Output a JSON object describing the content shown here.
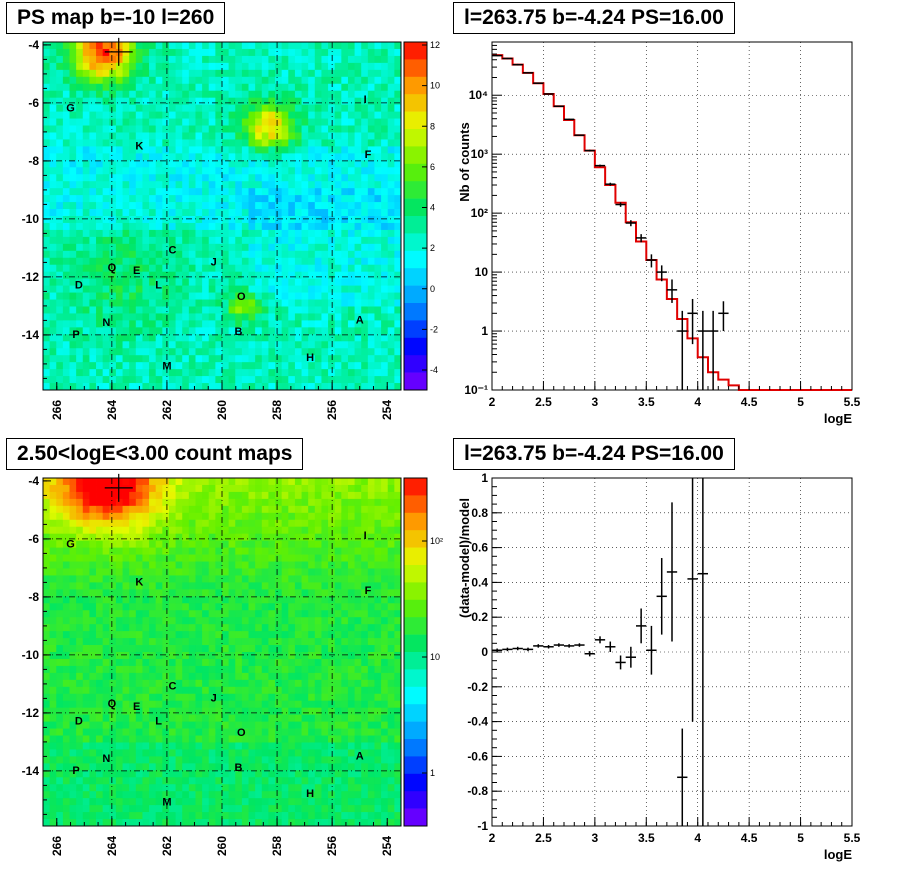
{
  "panels": [
    {
      "title": "PS map b=-10 l=260"
    },
    {
      "title": "l=263.75 b=-4.24 PS=16.00"
    },
    {
      "title": "2.50<logE<3.00 count maps"
    },
    {
      "title": "l=263.75 b=-4.24 PS=16.00"
    }
  ],
  "maps": {
    "x_ticks": [
      "266",
      "264",
      "262",
      "260",
      "258",
      "256",
      "254"
    ],
    "y_ticks": [
      "-4",
      "-6",
      "-8",
      "-10",
      "-12",
      "-14"
    ],
    "sources": [
      {
        "label": "G",
        "l": 265.5,
        "b": -6.3
      },
      {
        "label": "K",
        "l": 263.0,
        "b": -7.6
      },
      {
        "label": "I",
        "l": 254.8,
        "b": -6.0
      },
      {
        "label": "F",
        "l": 254.7,
        "b": -7.9
      },
      {
        "label": "C",
        "l": 261.8,
        "b": -11.2
      },
      {
        "label": "J",
        "l": 260.3,
        "b": -11.6
      },
      {
        "label": "Q",
        "l": 264.0,
        "b": -11.8
      },
      {
        "label": "E",
        "l": 263.1,
        "b": -11.9
      },
      {
        "label": "D",
        "l": 265.2,
        "b": -12.4
      },
      {
        "label": "L",
        "l": 262.3,
        "b": -12.4
      },
      {
        "label": "O",
        "l": 259.3,
        "b": -12.8
      },
      {
        "label": "N",
        "l": 264.2,
        "b": -13.7
      },
      {
        "label": "P",
        "l": 265.3,
        "b": -14.1
      },
      {
        "label": "B",
        "l": 259.4,
        "b": -14.0
      },
      {
        "label": "A",
        "l": 255.0,
        "b": -13.6
      },
      {
        "label": "H",
        "l": 256.8,
        "b": -14.9
      },
      {
        "label": "M",
        "l": 262.0,
        "b": -15.2
      }
    ],
    "ps_colorbar_ticks": [
      "12",
      "10",
      "8",
      "6",
      "4",
      "2",
      "0",
      "-2",
      "-4"
    ],
    "count_colorbar_ticks": [
      "10²",
      "10",
      "1"
    ]
  },
  "chart_data": [
    {
      "type": "heatmap",
      "title": "PS map b=-10 l=260",
      "xlim": [
        266.5,
        253.5
      ],
      "ylim": [
        -15.9,
        -3.9
      ],
      "zlim": [
        -5,
        12
      ]
    },
    {
      "type": "line",
      "title": "l=263.75 b=-4.24 PS=16.00",
      "xlabel": "logE",
      "ylabel": "Nb of counts",
      "xlim": [
        2,
        5.5
      ],
      "ylim": [
        0.1,
        80000
      ],
      "yscale": "log",
      "grid": true,
      "x_ticks": [
        "2",
        "2.5",
        "3",
        "3.5",
        "4",
        "4.5",
        "5",
        "5.5"
      ],
      "y_ticks": [
        "10⁴",
        "10³",
        "10²",
        "10",
        "1",
        "10⁻¹"
      ],
      "model_edges": [
        2.0,
        2.1,
        2.2,
        2.3,
        2.4,
        2.5,
        2.6,
        2.7,
        2.8,
        2.9,
        3.0,
        3.1,
        3.2,
        3.3,
        3.4,
        3.5,
        3.6,
        3.7,
        3.8,
        3.9,
        4.0,
        4.1,
        4.2,
        4.3,
        4.4,
        4.5,
        5.5
      ],
      "model_values": [
        48000,
        42000,
        33000,
        24000,
        16000,
        10500,
        6500,
        3800,
        2100,
        1150,
        600,
        300,
        150,
        70,
        33,
        16,
        7.5,
        3.5,
        1.6,
        0.75,
        0.36,
        0.2,
        0.15,
        0.12,
        0.1,
        0.1
      ],
      "data_points": [
        {
          "x": 2.05,
          "y": 47000,
          "lo": 46000,
          "hi": 48000
        },
        {
          "x": 2.15,
          "y": 42000,
          "lo": 41000,
          "hi": 43000
        },
        {
          "x": 2.25,
          "y": 33000,
          "lo": 32000,
          "hi": 34000
        },
        {
          "x": 2.35,
          "y": 24000,
          "lo": 23500,
          "hi": 24500
        },
        {
          "x": 2.45,
          "y": 16000,
          "lo": 15700,
          "hi": 16300
        },
        {
          "x": 2.55,
          "y": 10500,
          "lo": 10300,
          "hi": 10700
        },
        {
          "x": 2.65,
          "y": 6500,
          "lo": 6400,
          "hi": 6600
        },
        {
          "x": 2.75,
          "y": 3900,
          "lo": 3800,
          "hi": 4000
        },
        {
          "x": 2.85,
          "y": 2100,
          "lo": 2050,
          "hi": 2150
        },
        {
          "x": 2.95,
          "y": 1150,
          "lo": 1110,
          "hi": 1190
        },
        {
          "x": 3.05,
          "y": 640,
          "lo": 615,
          "hi": 665
        },
        {
          "x": 3.15,
          "y": 310,
          "lo": 292,
          "hi": 328
        },
        {
          "x": 3.25,
          "y": 140,
          "lo": 128,
          "hi": 152
        },
        {
          "x": 3.35,
          "y": 68,
          "lo": 60,
          "hi": 76
        },
        {
          "x": 3.45,
          "y": 38,
          "lo": 32,
          "hi": 44
        },
        {
          "x": 3.55,
          "y": 16,
          "lo": 12,
          "hi": 20
        },
        {
          "x": 3.65,
          "y": 10,
          "lo": 7,
          "hi": 13
        },
        {
          "x": 3.75,
          "y": 5,
          "lo": 3,
          "hi": 7.5
        },
        {
          "x": 3.85,
          "y": 1,
          "lo": 0.1,
          "hi": 2.2
        },
        {
          "x": 3.95,
          "y": 2,
          "lo": 0.6,
          "hi": 3.5
        },
        {
          "x": 4.05,
          "y": 1,
          "lo": 0.1,
          "hi": 2.2
        },
        {
          "x": 4.15,
          "y": 1,
          "lo": 0.1,
          "hi": 2.2
        },
        {
          "x": 4.25,
          "y": 2,
          "lo": 1,
          "hi": 3.2
        }
      ]
    },
    {
      "type": "heatmap",
      "title": "2.50<logE<3.00 count maps",
      "xlim": [
        266.5,
        253.5
      ],
      "ylim": [
        -15.9,
        -3.9
      ],
      "zscale": "log"
    },
    {
      "type": "scatter",
      "title": "l=263.75 b=-4.24 PS=16.00",
      "xlabel": "logE",
      "ylabel": "(data-model)/model",
      "xlim": [
        2,
        5.5
      ],
      "ylim": [
        -1,
        1
      ],
      "grid": true,
      "x_ticks": [
        "2",
        "2.5",
        "3",
        "3.5",
        "4",
        "4.5",
        "5",
        "5.5"
      ],
      "y_ticks": [
        "1",
        "0.8",
        "0.6",
        "0.4",
        "0.2",
        "0",
        "-0.2",
        "-0.4",
        "-0.6",
        "-0.8",
        "-1"
      ],
      "points": [
        {
          "x": 2.05,
          "y": 0.01,
          "err": 0.01
        },
        {
          "x": 2.15,
          "y": 0.015,
          "err": 0.01
        },
        {
          "x": 2.25,
          "y": 0.02,
          "err": 0.01
        },
        {
          "x": 2.35,
          "y": 0.015,
          "err": 0.01
        },
        {
          "x": 2.45,
          "y": 0.035,
          "err": 0.01
        },
        {
          "x": 2.55,
          "y": 0.03,
          "err": 0.01
        },
        {
          "x": 2.65,
          "y": 0.04,
          "err": 0.01
        },
        {
          "x": 2.75,
          "y": 0.035,
          "err": 0.01
        },
        {
          "x": 2.85,
          "y": 0.04,
          "err": 0.01
        },
        {
          "x": 2.95,
          "y": -0.01,
          "err": 0.015
        },
        {
          "x": 3.05,
          "y": 0.07,
          "err": 0.02
        },
        {
          "x": 3.15,
          "y": 0.03,
          "err": 0.03
        },
        {
          "x": 3.25,
          "y": -0.06,
          "err": 0.04
        },
        {
          "x": 3.35,
          "y": -0.03,
          "err": 0.06
        },
        {
          "x": 3.45,
          "y": 0.15,
          "err": 0.1
        },
        {
          "x": 3.55,
          "y": 0.01,
          "err": 0.14
        },
        {
          "x": 3.65,
          "y": 0.32,
          "err": 0.22
        },
        {
          "x": 3.75,
          "y": 0.46,
          "err": 0.4
        },
        {
          "x": 3.85,
          "y": -0.72,
          "err": 0.28
        },
        {
          "x": 3.95,
          "y": 0.42,
          "err": 0.82
        },
        {
          "x": 4.05,
          "y": 0.45,
          "err": 1.6
        }
      ]
    }
  ]
}
